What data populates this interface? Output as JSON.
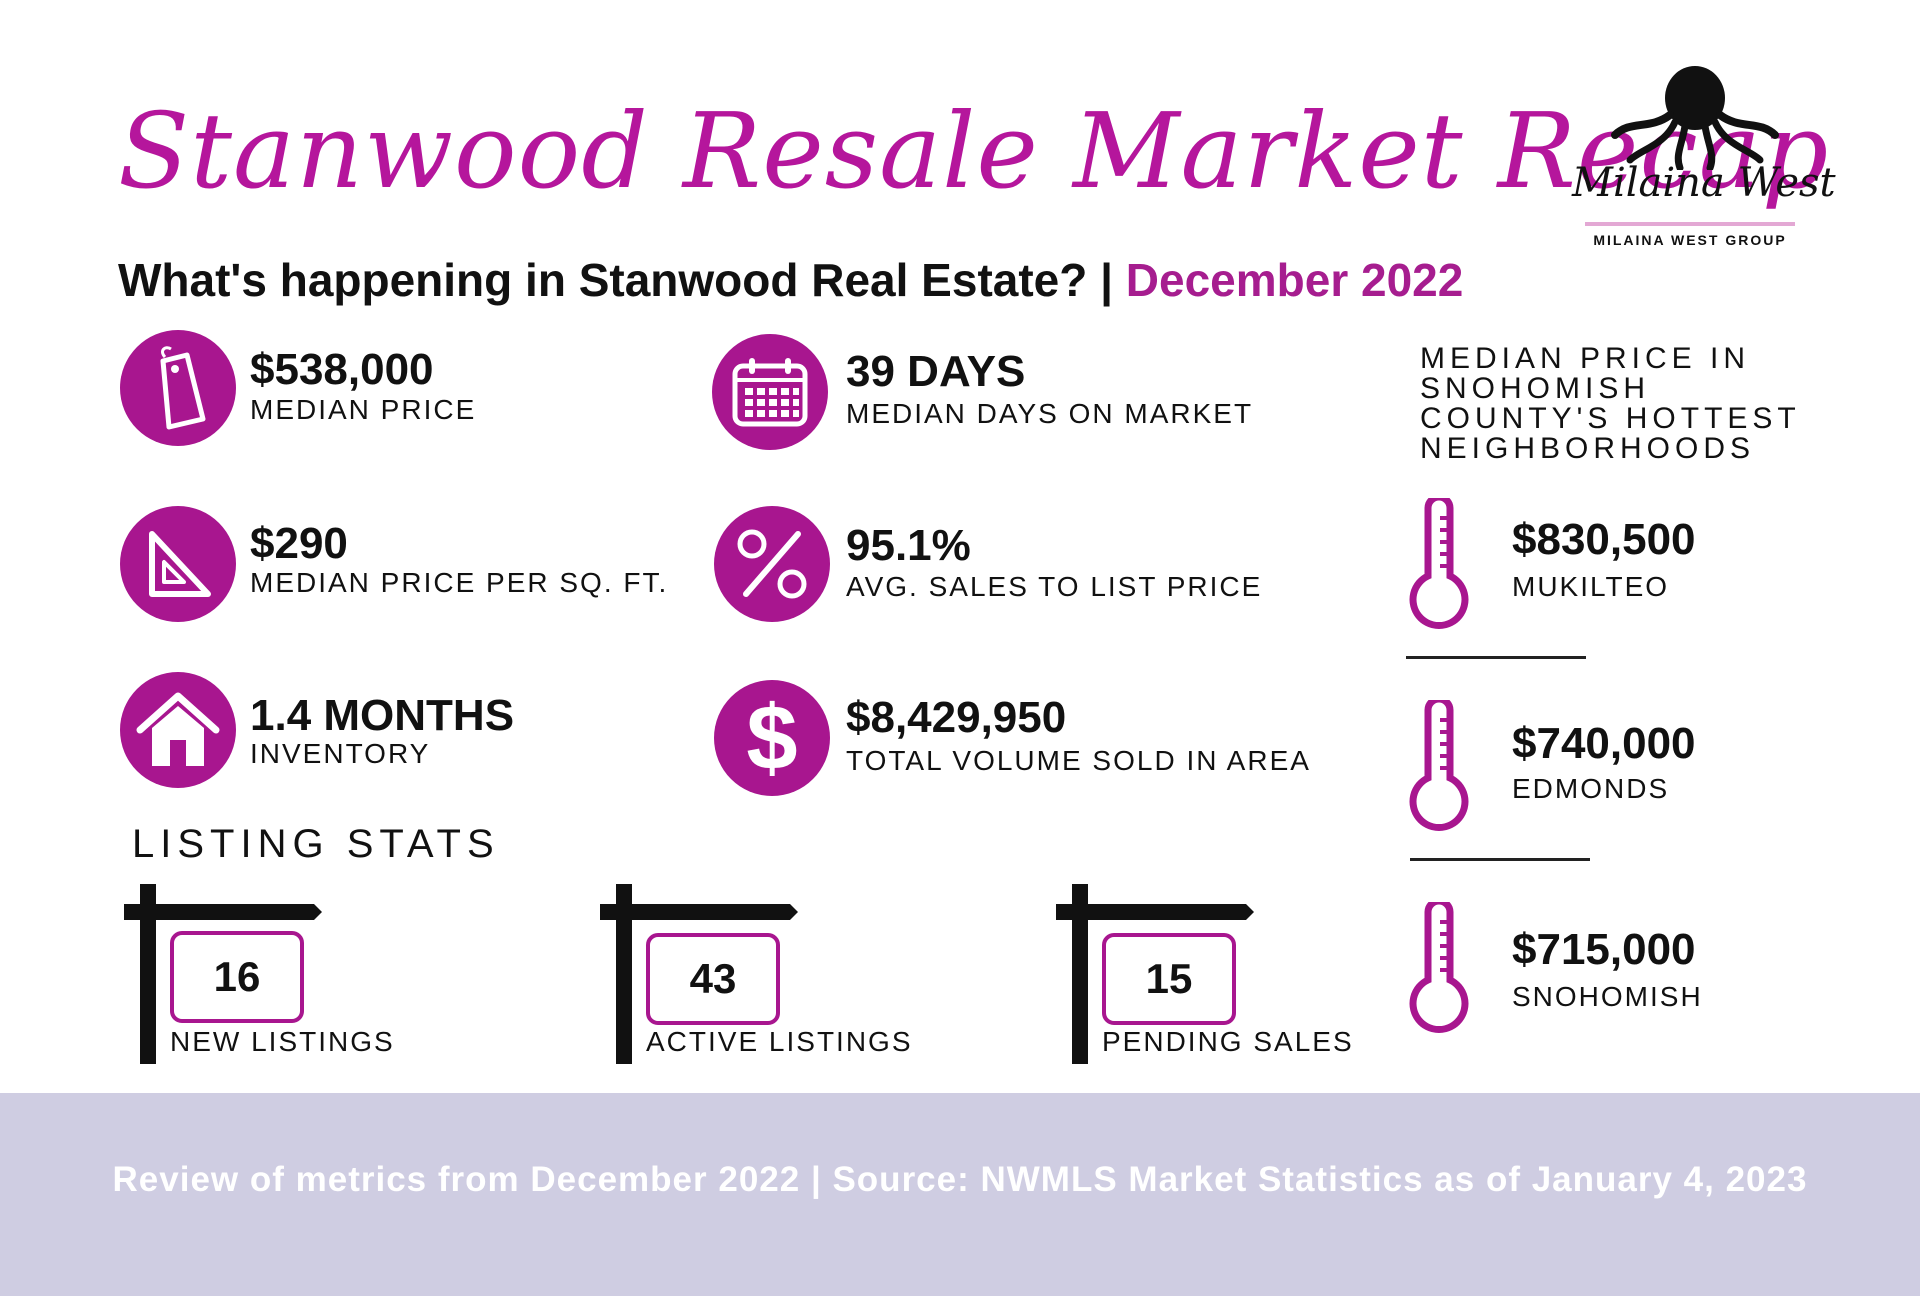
{
  "header": {
    "title": "Stanwood Resale Market Recap",
    "subtitle_prefix": "What's happening in Stanwood Real Estate? | ",
    "subtitle_period": "December 2022"
  },
  "logo": {
    "script": "Milaina West",
    "group": "MILAINA WEST GROUP",
    "icon": "octopus-icon"
  },
  "stats": [
    {
      "value": "$538,000",
      "label": "MEDIAN PRICE",
      "icon": "price-tag-icon"
    },
    {
      "value": "39 DAYS",
      "label": "MEDIAN DAYS ON MARKET",
      "icon": "calendar-icon"
    },
    {
      "value": "$290",
      "label": "MEDIAN PRICE PER SQ. FT.",
      "icon": "set-square-icon"
    },
    {
      "value": "95.1%",
      "label": "AVG. SALES TO LIST PRICE",
      "icon": "percent-icon"
    },
    {
      "value": "1.4 MONTHS",
      "label": "INVENTORY",
      "icon": "house-icon"
    },
    {
      "value": "$8,429,950",
      "label": "TOTAL VOLUME SOLD IN AREA",
      "icon": "dollar-icon"
    }
  ],
  "neighborhoods": {
    "title": "MEDIAN PRICE IN SNOHOMISH COUNTY'S HOTTEST NEIGHBORHOODS",
    "items": [
      {
        "value": "$830,500",
        "name": "MUKILTEO",
        "icon": "thermometer-icon"
      },
      {
        "value": "$740,000",
        "name": "EDMONDS",
        "icon": "thermometer-icon"
      },
      {
        "value": "$715,000",
        "name": "SNOHOMISH",
        "icon": "thermometer-icon"
      }
    ]
  },
  "listing_stats": {
    "title": "LISTING STATS",
    "items": [
      {
        "count": "16",
        "label": "NEW LISTINGS",
        "icon": "sign-post-icon"
      },
      {
        "count": "43",
        "label": "ACTIVE LISTINGS",
        "icon": "sign-post-icon"
      },
      {
        "count": "15",
        "label": "PENDING SALES",
        "icon": "sign-post-icon"
      }
    ]
  },
  "footer": {
    "text": "Review of metrics from December 2022 | Source: NWMLS Market Statistics as of January 4, 2023"
  },
  "colors": {
    "accent": "#a8168f",
    "title": "#b5169c",
    "footer_band": "#cfcde2"
  }
}
